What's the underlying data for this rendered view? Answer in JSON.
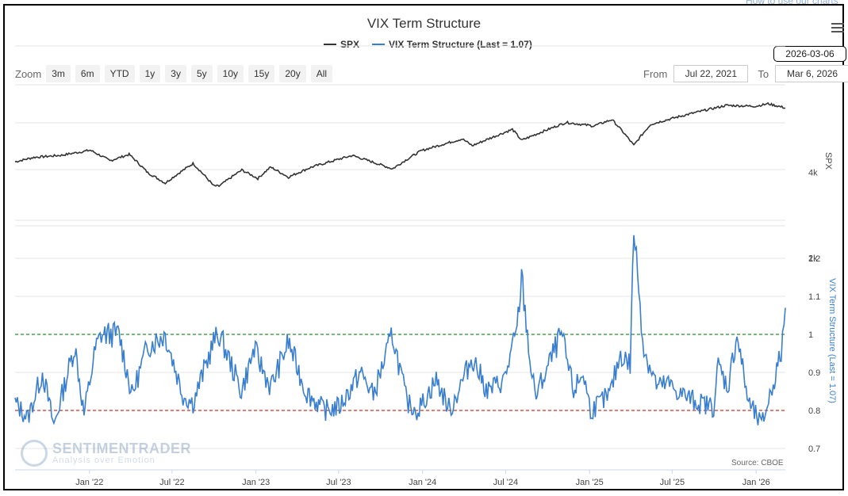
{
  "help_link": "How to use our charts",
  "chart_title": "VIX Term Structure",
  "legend": [
    {
      "label": "SPX",
      "color": "#333333"
    },
    {
      "label": "VIX Term Structure (Last = 1.07)",
      "color": "#3a7fcf"
    }
  ],
  "menu_icon": "hamburger-menu-icon",
  "date_badge": "2026-03-06",
  "zoom": {
    "label": "Zoom",
    "buttons": [
      "3m",
      "6m",
      "YTD",
      "1y",
      "3y",
      "5y",
      "10y",
      "15y",
      "20y",
      "All"
    ]
  },
  "range": {
    "from_label": "From",
    "from_value": "Jul 22, 2021",
    "to_label": "To",
    "to_value": "Mar 6, 2026"
  },
  "watermark": {
    "brand": "SENTIMENTRADER",
    "tagline": "Analysis over Emotion"
  },
  "source": "Source: CBOE",
  "colors": {
    "spx": "#333333",
    "vix_ts": "#3a7fcf",
    "upper_ref": "#2e8b2e",
    "lower_ref": "#c0392b"
  },
  "chart_data": {
    "type": "line",
    "title": "VIX Term Structure",
    "x_range": [
      "2021-07-22",
      "2026-03-06"
    ],
    "x_ticks": [
      "Jan '22",
      "Jul '22",
      "Jan '23",
      "Jul '23",
      "Jan '24",
      "Jul '24",
      "Jan '25",
      "Jul '25",
      "Jan '26"
    ],
    "panels": [
      {
        "name": "SPX",
        "axis_label": "SPX",
        "scale": "log",
        "tick_labels": [
          "4k",
          "2k"
        ],
        "series": {
          "name": "SPX",
          "x": [
            "2021-07-22",
            "2021-09-01",
            "2021-11-01",
            "2022-01-03",
            "2022-02-15",
            "2022-03-29",
            "2022-05-09",
            "2022-06-16",
            "2022-08-16",
            "2022-09-30",
            "2022-10-12",
            "2022-12-01",
            "2023-01-05",
            "2023-02-02",
            "2023-03-13",
            "2023-05-01",
            "2023-07-31",
            "2023-10-27",
            "2023-12-29",
            "2024-03-28",
            "2024-04-19",
            "2024-07-16",
            "2024-08-05",
            "2024-11-11",
            "2025-01-10",
            "2025-02-19",
            "2025-04-08",
            "2025-05-15",
            "2025-07-31",
            "2025-10-28",
            "2025-12-31",
            "2026-01-27",
            "2026-03-06"
          ],
          "values": [
            4360,
            4520,
            4600,
            4790,
            4400,
            4630,
            3990,
            3670,
            4300,
            3590,
            3580,
            4080,
            3810,
            4180,
            3850,
            4170,
            4590,
            4120,
            4770,
            5250,
            4970,
            5670,
            5190,
            6000,
            5830,
            6140,
            4980,
            5910,
            6380,
            6890,
            6840,
            6980,
            6750
          ]
        }
      },
      {
        "name": "VIX Term Structure",
        "axis_label": "VIX Term Structure (Last = 1.07)",
        "ylim": [
          0.7,
          1.3
        ],
        "tick_labels": [
          "1.2",
          "1.1",
          "1",
          "0.9",
          "0.8",
          "0.7"
        ],
        "reference_lines": [
          {
            "value": 1.0,
            "label": ""
          },
          {
            "value": 0.8,
            "label": ""
          }
        ],
        "series": {
          "name": "VIX Term Structure (Last = 1.07)",
          "x": [
            "2021-07-22",
            "2021-08-19",
            "2021-09-20",
            "2021-10-15",
            "2021-11-30",
            "2021-12-20",
            "2022-01-14",
            "2022-01-27",
            "2022-03-07",
            "2022-04-04",
            "2022-05-09",
            "2022-06-16",
            "2022-07-25",
            "2022-08-16",
            "2022-09-30",
            "2022-10-13",
            "2022-11-30",
            "2022-12-28",
            "2023-02-02",
            "2023-03-13",
            "2023-04-20",
            "2023-05-31",
            "2023-07-03",
            "2023-08-18",
            "2023-09-15",
            "2023-10-27",
            "2023-11-28",
            "2023-12-22",
            "2024-01-31",
            "2024-03-01",
            "2024-04-19",
            "2024-05-22",
            "2024-06-28",
            "2024-07-26",
            "2024-08-05",
            "2024-08-28",
            "2024-09-06",
            "2024-10-31",
            "2024-11-27",
            "2024-12-18",
            "2025-01-03",
            "2025-02-14",
            "2025-03-10",
            "2025-03-31",
            "2025-04-08",
            "2025-04-30",
            "2025-05-30",
            "2025-06-20",
            "2025-07-25",
            "2025-08-28",
            "2025-09-30",
            "2025-10-10",
            "2025-10-31",
            "2025-11-20",
            "2025-12-15",
            "2026-01-13",
            "2026-02-05",
            "2026-02-25",
            "2026-03-06"
          ],
          "values": [
            0.82,
            0.78,
            0.9,
            0.76,
            0.97,
            0.79,
            0.96,
            1.0,
            1.0,
            0.84,
            0.97,
            1.0,
            0.84,
            0.82,
            0.98,
            1.0,
            0.85,
            0.96,
            0.86,
            0.98,
            0.85,
            0.8,
            0.81,
            0.9,
            0.84,
            1.0,
            0.82,
            0.8,
            0.88,
            0.8,
            0.94,
            0.85,
            0.88,
            1.01,
            1.15,
            0.88,
            0.84,
            1.0,
            0.85,
            0.9,
            0.8,
            0.84,
            0.95,
            0.92,
            1.28,
            0.96,
            0.86,
            0.87,
            0.84,
            0.82,
            0.81,
            0.92,
            0.86,
            1.0,
            0.82,
            0.76,
            0.86,
            0.95,
            1.07
          ]
        }
      }
    ]
  }
}
